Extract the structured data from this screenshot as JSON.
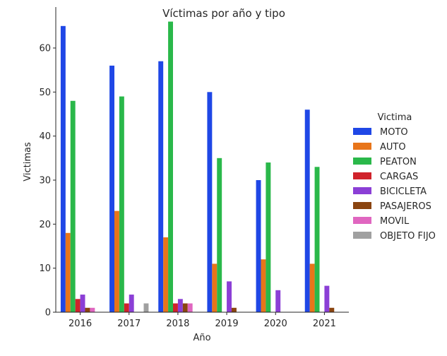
{
  "chart_data": {
    "type": "bar",
    "title": "Víctimas por año y tipo",
    "xlabel": "Año",
    "ylabel": "Victimas",
    "ylim": [
      0,
      69.3
    ],
    "yticks": [
      0,
      10,
      20,
      30,
      40,
      50,
      60
    ],
    "categories": [
      "2016",
      "2017",
      "2018",
      "2019",
      "2020",
      "2021"
    ],
    "legend_title": "Victima",
    "legend_position": "right",
    "grid": false,
    "series": [
      {
        "name": "MOTO",
        "color": "#1f47e6",
        "values": [
          65,
          56,
          57,
          50,
          30,
          46
        ]
      },
      {
        "name": "AUTO",
        "color": "#e8751a",
        "values": [
          18,
          23,
          17,
          11,
          12,
          11
        ]
      },
      {
        "name": "PEATON",
        "color": "#2ab84a",
        "values": [
          48,
          49,
          66,
          35,
          34,
          33
        ]
      },
      {
        "name": "CARGAS",
        "color": "#d0222b",
        "values": [
          3,
          2,
          2,
          null,
          null,
          null
        ]
      },
      {
        "name": "BICICLETA",
        "color": "#8b3fd6",
        "values": [
          4,
          4,
          3,
          7,
          5,
          6
        ]
      },
      {
        "name": "PASAJEROS",
        "color": "#8a4410",
        "values": [
          1,
          null,
          2,
          1,
          null,
          1
        ]
      },
      {
        "name": "MOVIL",
        "color": "#e066c0",
        "values": [
          1,
          null,
          2,
          null,
          null,
          null
        ]
      },
      {
        "name": "OBJETO FIJO",
        "color": "#a0a0a0",
        "values": [
          null,
          2,
          null,
          null,
          null,
          null
        ]
      }
    ]
  }
}
